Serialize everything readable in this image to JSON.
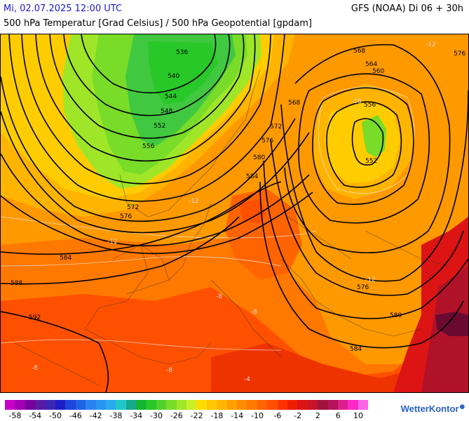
{
  "header": {
    "datetime": "Mi, 02.07.2025 12:00 UTC",
    "model_run": "GFS (NOAA) Di 06 + 30h",
    "parameters": "500 hPa Temperatur [Grad Celsius] / 500 hPa Geopotential [gpdam]"
  },
  "map": {
    "geopotential_contours": [
      {
        "value": "536"
      },
      {
        "value": "540"
      },
      {
        "value": "544"
      },
      {
        "value": "548"
      },
      {
        "value": "552"
      },
      {
        "value": "556"
      },
      {
        "value": "560"
      },
      {
        "value": "564"
      },
      {
        "value": "568"
      },
      {
        "value": "572"
      },
      {
        "value": "576"
      },
      {
        "value": "580"
      },
      {
        "value": "584"
      },
      {
        "value": "588"
      },
      {
        "value": "592"
      }
    ],
    "contour_labels": [
      {
        "id": "c536",
        "text": "536"
      },
      {
        "id": "c540",
        "text": "540"
      },
      {
        "id": "c544",
        "text": "544"
      },
      {
        "id": "c548",
        "text": "548"
      },
      {
        "id": "c552w",
        "text": "552"
      },
      {
        "id": "c556w",
        "text": "556"
      },
      {
        "id": "c572w",
        "text": "572"
      },
      {
        "id": "c576w",
        "text": "576"
      },
      {
        "id": "c584w",
        "text": "584"
      },
      {
        "id": "c588w",
        "text": "588"
      },
      {
        "id": "c592w",
        "text": "592"
      },
      {
        "id": "c568n",
        "text": "568"
      },
      {
        "id": "c576ne",
        "text": "576"
      },
      {
        "id": "c564e",
        "text": "564"
      },
      {
        "id": "c560e",
        "text": "560"
      },
      {
        "id": "c556e",
        "text": "556"
      },
      {
        "id": "c552e",
        "text": "552"
      },
      {
        "id": "c568c",
        "text": "568"
      },
      {
        "id": "c572c",
        "text": "572"
      },
      {
        "id": "c576c",
        "text": "576"
      },
      {
        "id": "c580c",
        "text": "580"
      },
      {
        "id": "c584c",
        "text": "584"
      },
      {
        "id": "c576se",
        "text": "576"
      },
      {
        "id": "c580se",
        "text": "580"
      },
      {
        "id": "c584se",
        "text": "584"
      }
    ],
    "isotherm_labels": [
      {
        "id": "t12ne",
        "text": "-12"
      },
      {
        "id": "t12w",
        "text": "-12"
      },
      {
        "id": "t12c",
        "text": "-12"
      },
      {
        "id": "t12e",
        "text": "-12"
      },
      {
        "id": "t8c",
        "text": "-8"
      },
      {
        "id": "t8s",
        "text": "-8"
      },
      {
        "id": "t8sw",
        "text": "-8"
      },
      {
        "id": "t8sc",
        "text": "-8"
      },
      {
        "id": "t4s",
        "text": "-4"
      },
      {
        "id": "t18",
        "text": "-18"
      }
    ],
    "colors": {
      "ocean_base": "#f4a020",
      "cold_green": "#40c840",
      "mid_green": "#7cd832",
      "yellow": "#ffcc00",
      "orange": "#ff9900",
      "dark_orange": "#ff6a00",
      "red": "#ee3300",
      "dark_red": "#b0122a",
      "maroon": "#6a0a30"
    }
  },
  "legend": {
    "colors": [
      "#c800c8",
      "#a000b4",
      "#7a009e",
      "#5a1aa6",
      "#3c28b4",
      "#1e1ec8",
      "#1e46dc",
      "#1e64e6",
      "#2882f0",
      "#2896f0",
      "#28aaf0",
      "#1ec8c8",
      "#14aa8c",
      "#14b432",
      "#28c828",
      "#50d22a",
      "#78dc28",
      "#a0e628",
      "#c8f028",
      "#ffdc00",
      "#ffc800",
      "#ffb400",
      "#ffa000",
      "#ff8c00",
      "#ff7800",
      "#ff6400",
      "#ff5000",
      "#ff3200",
      "#f01e00",
      "#dc1414",
      "#c81428",
      "#a0143c",
      "#b4145a",
      "#dc1e8c",
      "#ff28c8",
      "#ff64e6"
    ],
    "labels": [
      "-58",
      "-54",
      "-50",
      "-46",
      "-42",
      "-38",
      "-34",
      "-30",
      "-26",
      "-22",
      "-18",
      "-14",
      "-10",
      "-6",
      "-2",
      "2",
      "6",
      "10"
    ]
  },
  "branding": {
    "logo_text": "WetterKontor",
    "logo_icon": "sun-icon"
  }
}
